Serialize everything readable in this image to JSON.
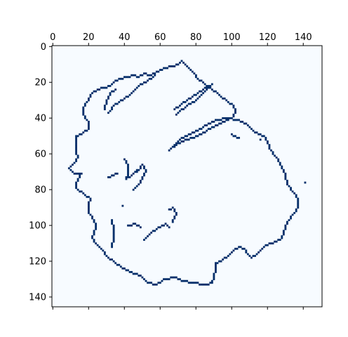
{
  "chart_data": {
    "type": "heatmap",
    "title": "",
    "xlabel": "",
    "ylabel": "",
    "x_axis_position": "top",
    "x_ticks": [
      0,
      20,
      40,
      60,
      80,
      100,
      120,
      140
    ],
    "y_ticks": [
      0,
      20,
      40,
      60,
      80,
      100,
      120,
      140
    ],
    "xlim": [
      -0.5,
      150.5
    ],
    "ylim": [
      145.5,
      -0.5
    ],
    "grid": false,
    "colormap": "Blues",
    "colors": {
      "background": "#f7fbff",
      "edge": "#08306b",
      "frame": "#000000"
    },
    "value_range": [
      0,
      1
    ],
    "description": "Binary edge map (1 = edge pixel) of an irregular closed blob outline with interior fragments.",
    "edge_paths": [
      [
        [
          72,
          8
        ],
        [
          70,
          10
        ],
        [
          66,
          11
        ],
        [
          60,
          13
        ],
        [
          57,
          15
        ],
        [
          54,
          16
        ],
        [
          51,
          15
        ],
        [
          48,
          17
        ],
        [
          45,
          16
        ],
        [
          42,
          17
        ],
        [
          37,
          18
        ],
        [
          34,
          20
        ],
        [
          32,
          22
        ],
        [
          28,
          23
        ],
        [
          23,
          25
        ],
        [
          21,
          27
        ],
        [
          20,
          30
        ],
        [
          18,
          32
        ],
        [
          17,
          35
        ],
        [
          17,
          38
        ],
        [
          18,
          40
        ],
        [
          20,
          42
        ],
        [
          20,
          46
        ],
        [
          17,
          48
        ],
        [
          13,
          50
        ],
        [
          13,
          54
        ],
        [
          13,
          59
        ],
        [
          14,
          62
        ],
        [
          11,
          66
        ],
        [
          9,
          68
        ],
        [
          12,
          71
        ],
        [
          16,
          71
        ],
        [
          13,
          76
        ],
        [
          13,
          79
        ],
        [
          18,
          83
        ],
        [
          21,
          85
        ],
        [
          20,
          88
        ],
        [
          20,
          93
        ],
        [
          23,
          97
        ],
        [
          24,
          101
        ],
        [
          22,
          107
        ],
        [
          24,
          110
        ],
        [
          27,
          113
        ],
        [
          30,
          117
        ],
        [
          34,
          120
        ],
        [
          38,
          123
        ],
        [
          43,
          126
        ],
        [
          47,
          127
        ],
        [
          50,
          129
        ],
        [
          53,
          132
        ],
        [
          58,
          133
        ],
        [
          62,
          130
        ],
        [
          68,
          129
        ],
        [
          73,
          131
        ],
        [
          79,
          132
        ],
        [
          85,
          133
        ],
        [
          89,
          132
        ],
        [
          90,
          128
        ],
        [
          91,
          125
        ],
        [
          91,
          121
        ],
        [
          95,
          119
        ],
        [
          99,
          116
        ],
        [
          102,
          113
        ],
        [
          104,
          112
        ],
        [
          107,
          113
        ],
        [
          109,
          116
        ],
        [
          111,
          118
        ],
        [
          114,
          116
        ],
        [
          118,
          112
        ],
        [
          121,
          110
        ],
        [
          125,
          109
        ],
        [
          128,
          107
        ],
        [
          129,
          104
        ],
        [
          131,
          98
        ],
        [
          135,
          93
        ],
        [
          137,
          90
        ],
        [
          137,
          86
        ],
        [
          135,
          82
        ],
        [
          131,
          77
        ],
        [
          130,
          72
        ],
        [
          128,
          68
        ],
        [
          125,
          62
        ],
        [
          121,
          57
        ],
        [
          120,
          53
        ],
        [
          118,
          50
        ],
        [
          113,
          48
        ],
        [
          109,
          44
        ],
        [
          104,
          41
        ],
        [
          98,
          40
        ],
        [
          91,
          41
        ],
        [
          84,
          45
        ],
        [
          78,
          48
        ],
        [
          72,
          51
        ],
        [
          68,
          55
        ],
        [
          65,
          58
        ]
      ],
      [
        [
          65,
          58
        ],
        [
          70,
          54
        ],
        [
          75,
          52
        ],
        [
          81,
          50
        ],
        [
          89,
          45
        ],
        [
          95,
          42
        ],
        [
          100,
          40
        ],
        [
          102,
          37
        ]
      ],
      [
        [
          102,
          37
        ],
        [
          101,
          33
        ],
        [
          97,
          30
        ],
        [
          93,
          27
        ],
        [
          88,
          23
        ],
        [
          84,
          20
        ],
        [
          81,
          18
        ],
        [
          79,
          15
        ],
        [
          76,
          12
        ],
        [
          72,
          8
        ]
      ],
      [
        [
          68,
          35
        ],
        [
          72,
          32
        ],
        [
          78,
          28
        ],
        [
          84,
          24
        ],
        [
          89,
          21
        ],
        [
          85,
          25
        ],
        [
          80,
          30
        ],
        [
          75,
          33
        ],
        [
          71,
          36
        ],
        [
          69,
          38
        ]
      ],
      [
        [
          31,
          37
        ],
        [
          34,
          33
        ],
        [
          37,
          31
        ],
        [
          43,
          27
        ],
        [
          48,
          22
        ],
        [
          53,
          19
        ],
        [
          57,
          16
        ]
      ],
      [
        [
          29,
          35
        ],
        [
          30,
          30
        ],
        [
          32,
          26
        ],
        [
          35,
          24
        ]
      ],
      [
        [
          40,
          63
        ],
        [
          42,
          66
        ],
        [
          42,
          70
        ],
        [
          41,
          74
        ],
        [
          44,
          72
        ],
        [
          47,
          69
        ]
      ],
      [
        [
          47,
          70
        ],
        [
          50,
          66
        ],
        [
          52,
          69
        ],
        [
          50,
          74
        ],
        [
          48,
          77
        ],
        [
          45,
          80
        ]
      ],
      [
        [
          33,
          97
        ],
        [
          34,
          102
        ],
        [
          34,
          107
        ],
        [
          33,
          112
        ]
      ],
      [
        [
          42,
          100
        ],
        [
          46,
          99
        ],
        [
          49,
          101
        ]
      ],
      [
        [
          51,
          108
        ],
        [
          55,
          104
        ],
        [
          59,
          101
        ],
        [
          63,
          99
        ],
        [
          65,
          101
        ]
      ],
      [
        [
          65,
          91
        ],
        [
          67,
          90
        ],
        [
          69,
          93
        ],
        [
          67,
          98
        ]
      ],
      [
        [
          100,
          49
        ],
        [
          104,
          51
        ]
      ],
      [
        [
          31,
          73
        ],
        [
          36,
          71
        ]
      ]
    ],
    "isolated_points": [
      [
        141,
        76
      ],
      [
        39,
        89
      ],
      [
        116,
        52
      ]
    ]
  }
}
